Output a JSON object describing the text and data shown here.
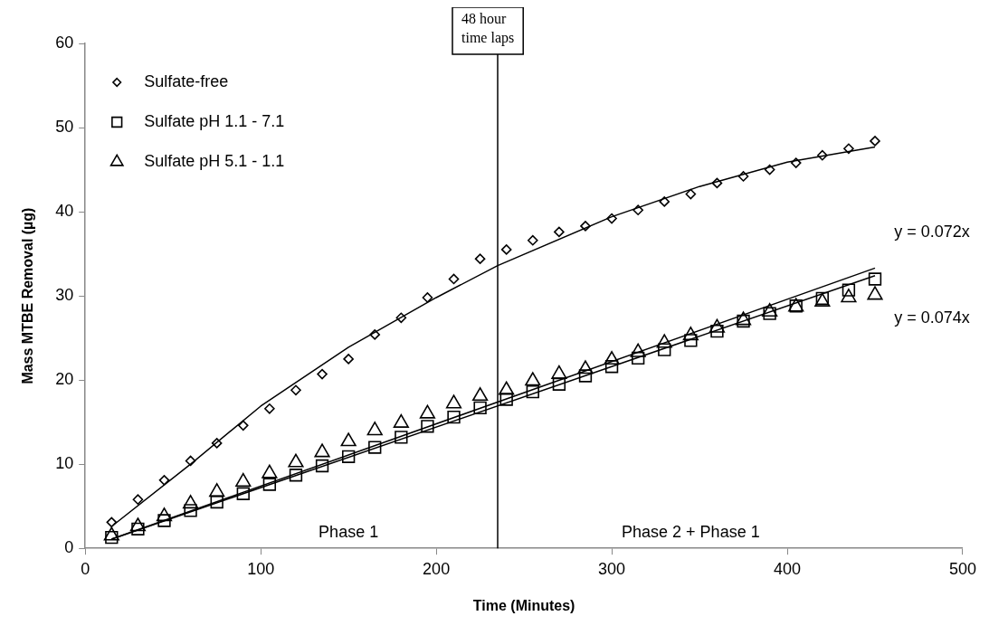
{
  "chart_data": {
    "type": "scatter",
    "xlabel": "Time (Minutes)",
    "ylabel": "Mass MTBE Removal (µg)",
    "x": [
      15,
      30,
      45,
      60,
      75,
      90,
      105,
      120,
      135,
      150,
      165,
      180,
      195,
      210,
      225,
      240,
      255,
      270,
      285,
      300,
      315,
      330,
      345,
      360,
      375,
      390,
      405,
      420,
      435,
      450
    ],
    "series": [
      {
        "name": "Sulfate-free",
        "color": "#000000",
        "marker": "diamond",
        "values": [
          3.1,
          5.8,
          8.1,
          10.4,
          12.5,
          14.6,
          16.6,
          18.8,
          20.7,
          22.5,
          25.4,
          27.4,
          29.8,
          32.0,
          34.4,
          35.5,
          36.6,
          37.6,
          38.3,
          39.2,
          40.2,
          41.2,
          42.1,
          43.4,
          44.2,
          45.0,
          45.8,
          46.7,
          47.5,
          48.4
        ]
      },
      {
        "name": "Sulfate pH 1.1 - 7.1",
        "color": "#000000",
        "marker": "square",
        "values": [
          1.3,
          2.3,
          3.3,
          4.5,
          5.5,
          6.5,
          7.6,
          8.7,
          9.8,
          10.9,
          12.0,
          13.2,
          14.5,
          15.6,
          16.7,
          17.7,
          18.6,
          19.5,
          20.5,
          21.6,
          22.6,
          23.6,
          24.7,
          25.8,
          27.0,
          27.9,
          28.8,
          29.7,
          30.7,
          32.0
        ]
      },
      {
        "name": "Sulfate pH 5.1 - 1.1",
        "color": "#000000",
        "marker": "triangle",
        "values": [
          1.5,
          2.6,
          3.8,
          5.3,
          6.7,
          7.9,
          8.9,
          10.2,
          11.4,
          12.7,
          14.0,
          14.9,
          16.0,
          17.2,
          18.1,
          18.8,
          19.9,
          20.7,
          21.3,
          22.4,
          23.3,
          24.4,
          25.3,
          26.2,
          27.1,
          28.1,
          28.7,
          29.3,
          29.8,
          30.1
        ]
      },
      {
        "type": "line",
        "color": "#000000",
        "marker": "none",
        "x": [
          15,
          60,
          100,
          150,
          200,
          235,
          300,
          350,
          400,
          450
        ],
        "values": [
          2.6,
          10.0,
          16.9,
          23.9,
          29.8,
          33.6,
          39.4,
          43.0,
          45.9,
          47.7
        ]
      },
      {
        "type": "line",
        "color": "#000000",
        "marker": "none",
        "x": [
          15,
          450
        ],
        "values": [
          1.1,
          32.4
        ]
      },
      {
        "type": "line",
        "color": "#000000",
        "marker": "none",
        "x": [
          15,
          450
        ],
        "values": [
          1.1,
          33.3
        ]
      }
    ],
    "xlim": [
      0,
      500
    ],
    "xticks": [
      0,
      100,
      200,
      300,
      400,
      500
    ],
    "ylim": [
      0,
      60
    ],
    "yticks": [
      0,
      10,
      20,
      30,
      40,
      50,
      60
    ],
    "grid": false,
    "legend": "top left",
    "ref_lines": [
      {
        "axis": "x",
        "value": 235,
        "label": "48 hour time laps",
        "color": "#000000"
      }
    ],
    "annotations": [
      "Phase 1",
      "Phase 2 + Phase 1",
      "y = 0.072x",
      "y = 0.074x"
    ]
  }
}
